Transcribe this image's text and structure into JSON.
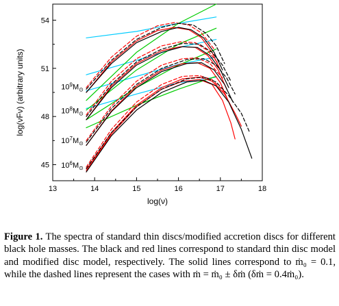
{
  "chart_data": {
    "type": "line",
    "xlabel": "log(ν)",
    "ylabel": "log(νFν) (arbitrary units)",
    "xlim": [
      13,
      18
    ],
    "ylim": [
      44,
      55
    ],
    "xticks": [
      "13",
      "14",
      "15",
      "16",
      "17",
      "18"
    ],
    "yticks": [
      "45",
      "48",
      "51",
      "54"
    ],
    "xtick_values": [
      13,
      14,
      15,
      16,
      17,
      18
    ],
    "ytick_values": [
      45,
      48,
      51,
      54
    ],
    "grid": false,
    "mass_labels": [
      {
        "base": "10",
        "exp": "6",
        "sub": "⊙",
        "x": 13.2,
        "y": 44.8
      },
      {
        "base": "10",
        "exp": "7",
        "sub": "⊙",
        "x": 13.2,
        "y": 46.35
      },
      {
        "base": "10",
        "exp": "8",
        "sub": "⊙",
        "x": 13.2,
        "y": 48.2
      },
      {
        "base": "10",
        "exp": "9",
        "sub": "⊙",
        "x": 13.2,
        "y": 49.7
      }
    ],
    "series": [
      {
        "group": "1e6",
        "color": "#000000",
        "dash": false,
        "points": [
          [
            13.8,
            44.55
          ],
          [
            14.4,
            46.8
          ],
          [
            15.0,
            48.4
          ],
          [
            15.6,
            49.5
          ],
          [
            16.2,
            50.15
          ],
          [
            16.6,
            50.25
          ],
          [
            16.9,
            49.9
          ],
          [
            17.2,
            48.9
          ],
          [
            17.5,
            47.2
          ],
          [
            17.75,
            45.4
          ]
        ]
      },
      {
        "group": "1e6",
        "color": "#000000",
        "dash": true,
        "points": [
          [
            13.8,
            44.75
          ],
          [
            14.4,
            47.0
          ],
          [
            15.0,
            48.6
          ],
          [
            15.6,
            49.7
          ],
          [
            16.2,
            50.35
          ],
          [
            16.6,
            50.45
          ],
          [
            16.9,
            50.15
          ],
          [
            17.2,
            49.3
          ],
          [
            17.5,
            48.2
          ],
          [
            17.7,
            47.0
          ]
        ]
      },
      {
        "group": "1e6",
        "color": "#ff0000",
        "dash": false,
        "points": [
          [
            13.8,
            44.55
          ],
          [
            14.4,
            46.9
          ],
          [
            15.0,
            48.6
          ],
          [
            15.6,
            49.7
          ],
          [
            16.1,
            50.2
          ],
          [
            16.5,
            50.3
          ],
          [
            16.8,
            50.0
          ],
          [
            17.05,
            49.0
          ],
          [
            17.25,
            47.6
          ],
          [
            17.35,
            46.6
          ]
        ]
      },
      {
        "group": "1e6",
        "color": "#ff0000",
        "dash": false,
        "points": [
          [
            13.8,
            44.65
          ],
          [
            14.4,
            47.0
          ],
          [
            15.0,
            48.7
          ],
          [
            15.6,
            49.8
          ],
          [
            16.1,
            50.35
          ],
          [
            16.5,
            50.45
          ],
          [
            16.8,
            50.2
          ],
          [
            17.1,
            49.4
          ],
          [
            17.35,
            48.2
          ],
          [
            17.5,
            47.4
          ]
        ]
      },
      {
        "group": "1e6",
        "color": "#ff0000",
        "dash": true,
        "points": [
          [
            13.8,
            44.85
          ],
          [
            14.4,
            47.2
          ],
          [
            15.0,
            48.9
          ],
          [
            15.6,
            50.0
          ],
          [
            16.1,
            50.5
          ],
          [
            16.5,
            50.55
          ],
          [
            16.8,
            50.3
          ],
          [
            17.1,
            49.5
          ]
        ]
      },
      {
        "group": "1e6",
        "color": "#00cc00",
        "dash": false,
        "points": [
          [
            13.8,
            47.3
          ],
          [
            15.0,
            48.7
          ],
          [
            16.0,
            49.7
          ],
          [
            16.9,
            50.5
          ]
        ]
      },
      {
        "group": "1e6",
        "color": "#00ccff",
        "dash": false,
        "points": [
          [
            13.8,
            48.5
          ],
          [
            15.0,
            49.4
          ],
          [
            16.0,
            50.1
          ],
          [
            16.9,
            50.45
          ]
        ]
      },
      {
        "group": "1e7",
        "color": "#000000",
        "dash": false,
        "points": [
          [
            13.8,
            46.2
          ],
          [
            14.4,
            48.3
          ],
          [
            15.0,
            49.8
          ],
          [
            15.6,
            50.8
          ],
          [
            16.2,
            51.3
          ],
          [
            16.55,
            51.35
          ],
          [
            16.85,
            50.9
          ],
          [
            17.1,
            50.0
          ],
          [
            17.3,
            48.9
          ]
        ]
      },
      {
        "group": "1e7",
        "color": "#000000",
        "dash": true,
        "points": [
          [
            13.8,
            46.4
          ],
          [
            14.4,
            48.5
          ],
          [
            15.0,
            50.0
          ],
          [
            15.6,
            51.0
          ],
          [
            16.2,
            51.55
          ],
          [
            16.6,
            51.6
          ],
          [
            16.9,
            51.2
          ],
          [
            17.15,
            50.4
          ],
          [
            17.35,
            49.4
          ]
        ]
      },
      {
        "group": "1e7",
        "color": "#ff0000",
        "dash": false,
        "points": [
          [
            13.8,
            46.2
          ],
          [
            14.4,
            48.35
          ],
          [
            15.0,
            49.9
          ],
          [
            15.6,
            50.9
          ],
          [
            16.1,
            51.3
          ],
          [
            16.45,
            51.35
          ],
          [
            16.75,
            51.0
          ],
          [
            17.0,
            50.1
          ],
          [
            17.2,
            48.9
          ]
        ]
      },
      {
        "group": "1e7",
        "color": "#ff0000",
        "dash": true,
        "points": [
          [
            13.8,
            46.5
          ],
          [
            14.4,
            48.65
          ],
          [
            15.0,
            50.2
          ],
          [
            15.6,
            51.2
          ],
          [
            16.1,
            51.6
          ],
          [
            16.45,
            51.65
          ],
          [
            16.75,
            51.3
          ],
          [
            17.05,
            50.4
          ]
        ]
      },
      {
        "group": "1e7",
        "color": "#00cc00",
        "dash": false,
        "points": [
          [
            13.8,
            47.8
          ],
          [
            15.0,
            49.8
          ],
          [
            16.0,
            51.2
          ],
          [
            16.9,
            52.2
          ]
        ]
      },
      {
        "group": "1e7",
        "color": "#00ccff",
        "dash": false,
        "points": [
          [
            13.8,
            49.6
          ],
          [
            15.0,
            50.5
          ],
          [
            16.0,
            51.25
          ],
          [
            16.9,
            51.7
          ]
        ]
      },
      {
        "group": "1e8",
        "color": "#000000",
        "dash": false,
        "points": [
          [
            13.8,
            47.8
          ],
          [
            14.4,
            49.8
          ],
          [
            15.0,
            51.2
          ],
          [
            15.6,
            52.0
          ],
          [
            16.1,
            52.35
          ],
          [
            16.45,
            52.3
          ],
          [
            16.75,
            51.8
          ],
          [
            17.0,
            50.9
          ],
          [
            17.2,
            49.8
          ]
        ]
      },
      {
        "group": "1e8",
        "color": "#000000",
        "dash": true,
        "points": [
          [
            13.8,
            48.0
          ],
          [
            14.4,
            50.0
          ],
          [
            15.0,
            51.4
          ],
          [
            15.6,
            52.2
          ],
          [
            16.1,
            52.55
          ],
          [
            16.5,
            52.5
          ],
          [
            16.8,
            52.0
          ],
          [
            17.05,
            51.2
          ],
          [
            17.25,
            50.2
          ]
        ]
      },
      {
        "group": "1e8",
        "color": "#ff0000",
        "dash": false,
        "points": [
          [
            13.8,
            47.8
          ],
          [
            14.4,
            49.9
          ],
          [
            15.0,
            51.3
          ],
          [
            15.6,
            52.1
          ],
          [
            16.05,
            52.35
          ],
          [
            16.4,
            52.3
          ],
          [
            16.7,
            51.8
          ],
          [
            16.95,
            50.9
          ],
          [
            17.15,
            49.7
          ]
        ]
      },
      {
        "group": "1e8",
        "color": "#ff0000",
        "dash": true,
        "points": [
          [
            13.8,
            48.1
          ],
          [
            14.4,
            50.2
          ],
          [
            15.0,
            51.6
          ],
          [
            15.6,
            52.4
          ],
          [
            16.05,
            52.65
          ],
          [
            16.4,
            52.6
          ],
          [
            16.7,
            52.1
          ],
          [
            16.95,
            51.3
          ]
        ]
      },
      {
        "group": "1e8",
        "color": "#00cc00",
        "dash": false,
        "points": [
          [
            13.8,
            48.4
          ],
          [
            15.0,
            50.9
          ],
          [
            16.0,
            52.5
          ],
          [
            16.9,
            53.5
          ]
        ]
      },
      {
        "group": "1e8",
        "color": "#00ccff",
        "dash": false,
        "points": [
          [
            13.8,
            50.6
          ],
          [
            15.0,
            51.5
          ],
          [
            16.0,
            52.3
          ],
          [
            16.9,
            52.8
          ]
        ]
      },
      {
        "group": "1e9",
        "color": "#000000",
        "dash": false,
        "points": [
          [
            13.8,
            49.5
          ],
          [
            14.4,
            51.3
          ],
          [
            15.0,
            52.6
          ],
          [
            15.6,
            53.3
          ],
          [
            16.0,
            53.55
          ],
          [
            16.3,
            53.4
          ],
          [
            16.6,
            52.9
          ],
          [
            16.85,
            52.0
          ],
          [
            17.05,
            50.9
          ]
        ]
      },
      {
        "group": "1e9",
        "color": "#000000",
        "dash": true,
        "points": [
          [
            13.8,
            49.7
          ],
          [
            14.4,
            51.5
          ],
          [
            15.0,
            52.8
          ],
          [
            15.6,
            53.55
          ],
          [
            16.0,
            53.8
          ],
          [
            16.35,
            53.7
          ],
          [
            16.65,
            53.2
          ],
          [
            16.9,
            52.4
          ],
          [
            17.1,
            51.3
          ]
        ]
      },
      {
        "group": "1e9",
        "color": "#ff0000",
        "dash": false,
        "points": [
          [
            13.8,
            49.5
          ],
          [
            14.4,
            51.4
          ],
          [
            15.0,
            52.7
          ],
          [
            15.5,
            53.35
          ],
          [
            15.9,
            53.55
          ],
          [
            16.25,
            53.4
          ],
          [
            16.55,
            52.9
          ],
          [
            16.8,
            52.0
          ],
          [
            17.0,
            50.9
          ]
        ]
      },
      {
        "group": "1e9",
        "color": "#ff0000",
        "dash": true,
        "points": [
          [
            13.8,
            49.8
          ],
          [
            14.4,
            51.7
          ],
          [
            15.0,
            53.0
          ],
          [
            15.5,
            53.65
          ],
          [
            15.9,
            53.85
          ],
          [
            16.25,
            53.7
          ],
          [
            16.55,
            53.2
          ],
          [
            16.85,
            52.2
          ]
        ]
      },
      {
        "group": "1e9",
        "color": "#00cc00",
        "dash": false,
        "points": [
          [
            13.8,
            49.0
          ],
          [
            15.0,
            52.0
          ],
          [
            16.0,
            53.8
          ],
          [
            16.9,
            55.0
          ]
        ]
      },
      {
        "group": "1e9",
        "color": "#00ccff",
        "dash": false,
        "points": [
          [
            13.8,
            52.9
          ],
          [
            15.0,
            53.3
          ],
          [
            16.0,
            53.8
          ],
          [
            16.9,
            54.2
          ]
        ]
      }
    ]
  },
  "caption": {
    "label": "Figure 1.",
    "text": " The spectra of standard thin discs/modified accretion discs for different black hole masses. The black and red lines correspond to standard thin disc model and modified disc model, respectively. The solid lines correspond to ṁ₀ = 0.1, while the dashed lines represent the cases with ṁ = ṁ₀ ± δṁ (δṁ = 0.4ṁ₀)."
  }
}
